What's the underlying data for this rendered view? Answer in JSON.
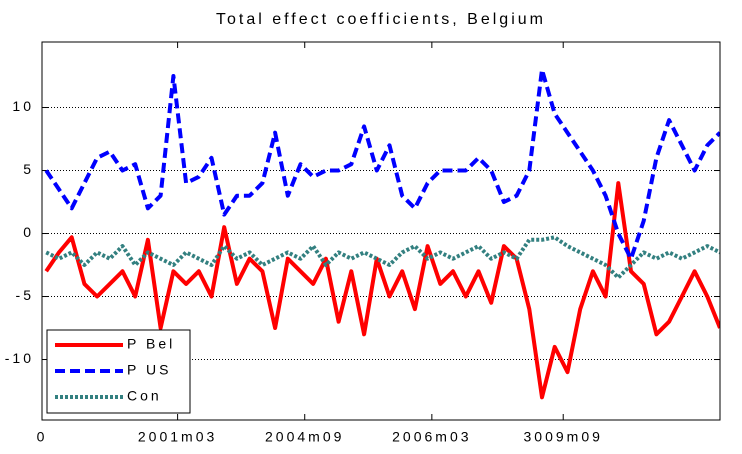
{
  "chart_data": {
    "type": "line",
    "title": "Total effect coefficients, Belgium",
    "x": [
      1,
      4,
      7,
      10,
      13,
      16,
      19,
      22,
      25,
      28,
      31,
      34,
      37,
      40,
      43,
      46,
      49,
      52,
      55,
      58,
      61,
      64,
      67,
      70,
      73,
      76,
      79,
      82,
      85,
      88,
      91,
      94,
      97,
      100,
      103,
      106,
      109,
      112,
      115,
      118,
      121,
      124,
      127,
      130,
      133,
      136,
      139,
      142,
      145,
      148,
      151,
      154,
      157,
      160
    ],
    "series": [
      {
        "name": "P Bel",
        "color": "#ff0000",
        "line_style": "solid",
        "values": [
          -3,
          -1.5,
          -0.3,
          -4,
          -5,
          -4,
          -3,
          -5,
          -0.5,
          -7.5,
          -3,
          -4,
          -3,
          -5,
          0.5,
          -4,
          -2,
          -3,
          -7.5,
          -2,
          -3,
          -4,
          -2,
          -7,
          -3,
          -8,
          -2,
          -5,
          -3,
          -6,
          -1,
          -4,
          -3,
          -5,
          -3,
          -5.5,
          -1,
          -2,
          -6,
          -13,
          -9,
          -11,
          -6,
          -3,
          -5,
          4,
          -3,
          -4,
          -8,
          -7,
          -5,
          -3,
          -5,
          -7.5
        ]
      },
      {
        "name": "P US",
        "color": "#0000ff",
        "line_style": "dash",
        "values": [
          5,
          3.5,
          2,
          4,
          6,
          6.5,
          5,
          5.5,
          2,
          3,
          12.5,
          4,
          4.5,
          6,
          1.5,
          3,
          3,
          4,
          8,
          3,
          5.5,
          4.5,
          5,
          5,
          5.5,
          8.5,
          5,
          7,
          3,
          2,
          4,
          5,
          5,
          5,
          6,
          5,
          2.5,
          3,
          5,
          13,
          9.5,
          8,
          6.5,
          5,
          3,
          0,
          -2,
          1,
          6,
          9,
          7,
          5,
          7,
          8
        ]
      },
      {
        "name": "Con",
        "color": "#338080",
        "line_style": "dot",
        "values": [
          -1.5,
          -2,
          -1.5,
          -2.5,
          -1.5,
          -2,
          -1,
          -2.5,
          -1.5,
          -2,
          -2.5,
          -1.5,
          -2,
          -2.5,
          -1,
          -2,
          -1.5,
          -2.5,
          -2,
          -1.5,
          -2,
          -1,
          -2.5,
          -1.5,
          -2,
          -1.5,
          -2,
          -2.5,
          -1.5,
          -1,
          -2,
          -1.5,
          -2,
          -1.5,
          -1,
          -2,
          -1.5,
          -2,
          -0.5,
          -0.5,
          -0.3,
          -1,
          -1.5,
          -2,
          -2.5,
          -3.5,
          -2.5,
          -1.5,
          -2,
          -1.5,
          -2,
          -1.5,
          -1,
          -1.5
        ]
      }
    ],
    "xlim": [
      0,
      160
    ],
    "xticks": [
      0,
      {
        "value": 32,
        "label": "2001m03"
      },
      {
        "value": 62,
        "label": "2004m09"
      },
      {
        "value": 92,
        "label": "2006m03"
      },
      {
        "value": 123,
        "label": "3009m09"
      }
    ],
    "ylim": [
      -14.8,
      15.2
    ],
    "yticks": [
      10,
      5,
      0,
      -5,
      -10
    ],
    "grid": true,
    "legend": "lower left"
  }
}
